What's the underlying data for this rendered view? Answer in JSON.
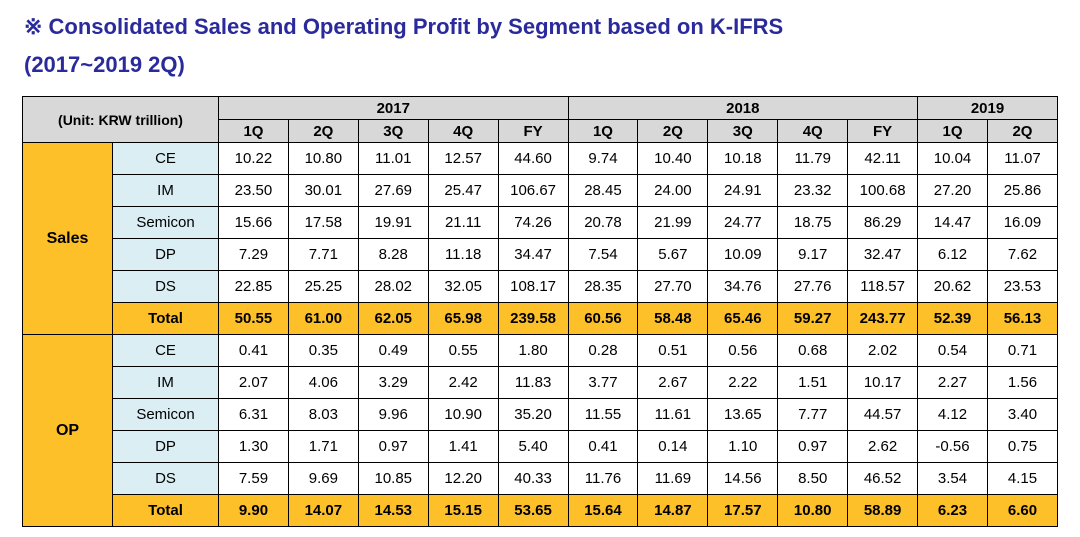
{
  "title": {
    "line1": "※ Consolidated Sales and Operating Profit by Segment based on K-IFRS",
    "line2": "(2017~2019 2Q)"
  },
  "colors": {
    "title_text": "#2a2a9c",
    "header_bg": "#d8d8d8",
    "accent_yellow": "#fdc029",
    "segment_blue": "#daeef3",
    "border_color": "#000000"
  },
  "chart_data": {
    "type": "table",
    "title": "Consolidated Sales and Operating Profit by Segment based on K-IFRS (2017~2019 2Q)",
    "unit_label": "(Unit: KRW trillion)",
    "year_groups": [
      {
        "label": "2017",
        "quarters": [
          "1Q",
          "2Q",
          "3Q",
          "4Q",
          "FY"
        ]
      },
      {
        "label": "2018",
        "quarters": [
          "1Q",
          "2Q",
          "3Q",
          "4Q",
          "FY"
        ]
      },
      {
        "label": "2019",
        "quarters": [
          "1Q",
          "2Q"
        ]
      }
    ],
    "sections": [
      {
        "name": "Sales",
        "rows": [
          {
            "label": "CE",
            "values": [
              10.22,
              10.8,
              11.01,
              12.57,
              44.6,
              9.74,
              10.4,
              10.18,
              11.79,
              42.11,
              10.04,
              11.07
            ]
          },
          {
            "label": "IM",
            "values": [
              23.5,
              30.01,
              27.69,
              25.47,
              106.67,
              28.45,
              24.0,
              24.91,
              23.32,
              100.68,
              27.2,
              25.86
            ]
          },
          {
            "label": "Semicon",
            "values": [
              15.66,
              17.58,
              19.91,
              21.11,
              74.26,
              20.78,
              21.99,
              24.77,
              18.75,
              86.29,
              14.47,
              16.09
            ]
          },
          {
            "label": "DP",
            "values": [
              7.29,
              7.71,
              8.28,
              11.18,
              34.47,
              7.54,
              5.67,
              10.09,
              9.17,
              32.47,
              6.12,
              7.62
            ]
          },
          {
            "label": "DS",
            "values": [
              22.85,
              25.25,
              28.02,
              32.05,
              108.17,
              28.35,
              27.7,
              34.76,
              27.76,
              118.57,
              20.62,
              23.53
            ]
          }
        ],
        "total": {
          "label": "Total",
          "values": [
            50.55,
            61.0,
            62.05,
            65.98,
            239.58,
            60.56,
            58.48,
            65.46,
            59.27,
            243.77,
            52.39,
            56.13
          ]
        }
      },
      {
        "name": "OP",
        "rows": [
          {
            "label": "CE",
            "values": [
              0.41,
              0.35,
              0.49,
              0.55,
              1.8,
              0.28,
              0.51,
              0.56,
              0.68,
              2.02,
              0.54,
              0.71
            ]
          },
          {
            "label": "IM",
            "values": [
              2.07,
              4.06,
              3.29,
              2.42,
              11.83,
              3.77,
              2.67,
              2.22,
              1.51,
              10.17,
              2.27,
              1.56
            ]
          },
          {
            "label": "Semicon",
            "values": [
              6.31,
              8.03,
              9.96,
              10.9,
              35.2,
              11.55,
              11.61,
              13.65,
              7.77,
              44.57,
              4.12,
              3.4
            ]
          },
          {
            "label": "DP",
            "values": [
              1.3,
              1.71,
              0.97,
              1.41,
              5.4,
              0.41,
              0.14,
              1.1,
              0.97,
              2.62,
              -0.56,
              0.75
            ]
          },
          {
            "label": "DS",
            "values": [
              7.59,
              9.69,
              10.85,
              12.2,
              40.33,
              11.76,
              11.69,
              14.56,
              8.5,
              46.52,
              3.54,
              4.15
            ]
          }
        ],
        "total": {
          "label": "Total",
          "values": [
            9.9,
            14.07,
            14.53,
            15.15,
            53.65,
            15.64,
            14.87,
            17.57,
            10.8,
            58.89,
            6.23,
            6.6
          ]
        }
      }
    ]
  }
}
